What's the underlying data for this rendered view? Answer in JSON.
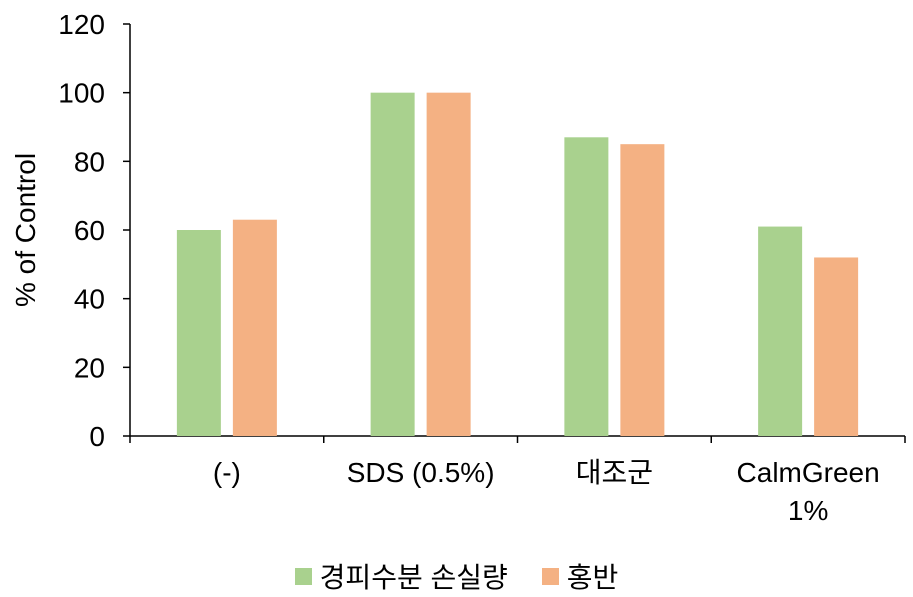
{
  "chart_data": {
    "type": "bar",
    "categories": [
      [
        "(-)"
      ],
      [
        "SDS (0.5%)"
      ],
      [
        "대조군"
      ],
      [
        "CalmGreen",
        "1%"
      ]
    ],
    "series": [
      {
        "name": "경피수분 손실량",
        "color": "#a9d18e",
        "values": [
          60,
          100,
          87,
          61
        ]
      },
      {
        "name": "홍반",
        "color": "#f4b183",
        "values": [
          63,
          100,
          85,
          52
        ]
      }
    ],
    "ylabel": "% of Control",
    "yticks": [
      0,
      20,
      40,
      60,
      80,
      100,
      120
    ],
    "ylim": [
      0,
      120
    ],
    "legend_position": "bottom",
    "grid": false
  }
}
